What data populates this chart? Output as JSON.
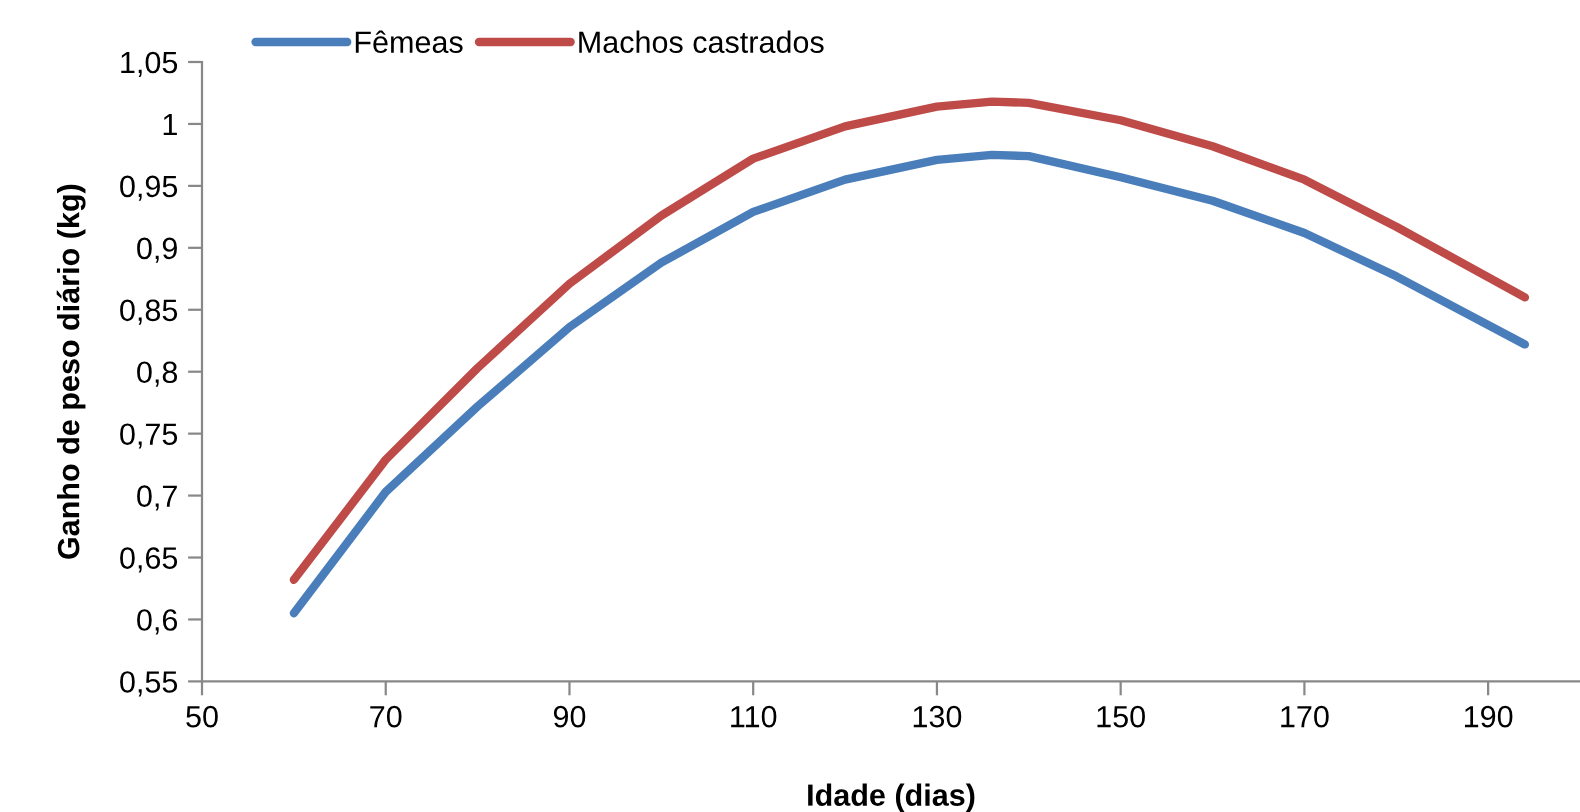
{
  "chart_data": {
    "type": "line",
    "xlabel": "Idade (dias)",
    "ylabel": "Ganho de peso diário (kg)",
    "x": [
      60,
      70,
      80,
      90,
      100,
      110,
      120,
      130,
      136,
      140,
      150,
      160,
      170,
      180,
      194
    ],
    "series": [
      {
        "name": "Fêmeas",
        "color": "#4a7ebb",
        "values": [
          0.605,
          0.703,
          0.772,
          0.836,
          0.888,
          0.929,
          0.955,
          0.971,
          0.975,
          0.974,
          0.957,
          0.938,
          0.912,
          0.877,
          0.822
        ]
      },
      {
        "name": "Machos castrados",
        "color": "#be4b48",
        "values": [
          0.632,
          0.729,
          0.803,
          0.871,
          0.926,
          0.972,
          0.998,
          1.014,
          1.018,
          1.017,
          1.003,
          0.982,
          0.955,
          0.917,
          0.86
        ]
      }
    ],
    "xlim": [
      50,
      200
    ],
    "xticks": [
      50,
      70,
      90,
      110,
      130,
      150,
      170,
      190
    ],
    "ylim": [
      0.55,
      1.05
    ],
    "yticks": [
      {
        "value": 0.55,
        "label": "0,55"
      },
      {
        "value": 0.6,
        "label": "0,6"
      },
      {
        "value": 0.65,
        "label": "0,65"
      },
      {
        "value": 0.7,
        "label": "0,7"
      },
      {
        "value": 0.75,
        "label": "0,75"
      },
      {
        "value": 0.8,
        "label": "0,8"
      },
      {
        "value": 0.85,
        "label": "0,85"
      },
      {
        "value": 0.9,
        "label": "0,9"
      },
      {
        "value": 0.95,
        "label": "0,95"
      },
      {
        "value": 1,
        "label": "1"
      },
      {
        "value": 1.05,
        "label": "1,05"
      }
    ],
    "grid": false,
    "legend": "top left",
    "marker": "none",
    "line_style": "solid"
  }
}
